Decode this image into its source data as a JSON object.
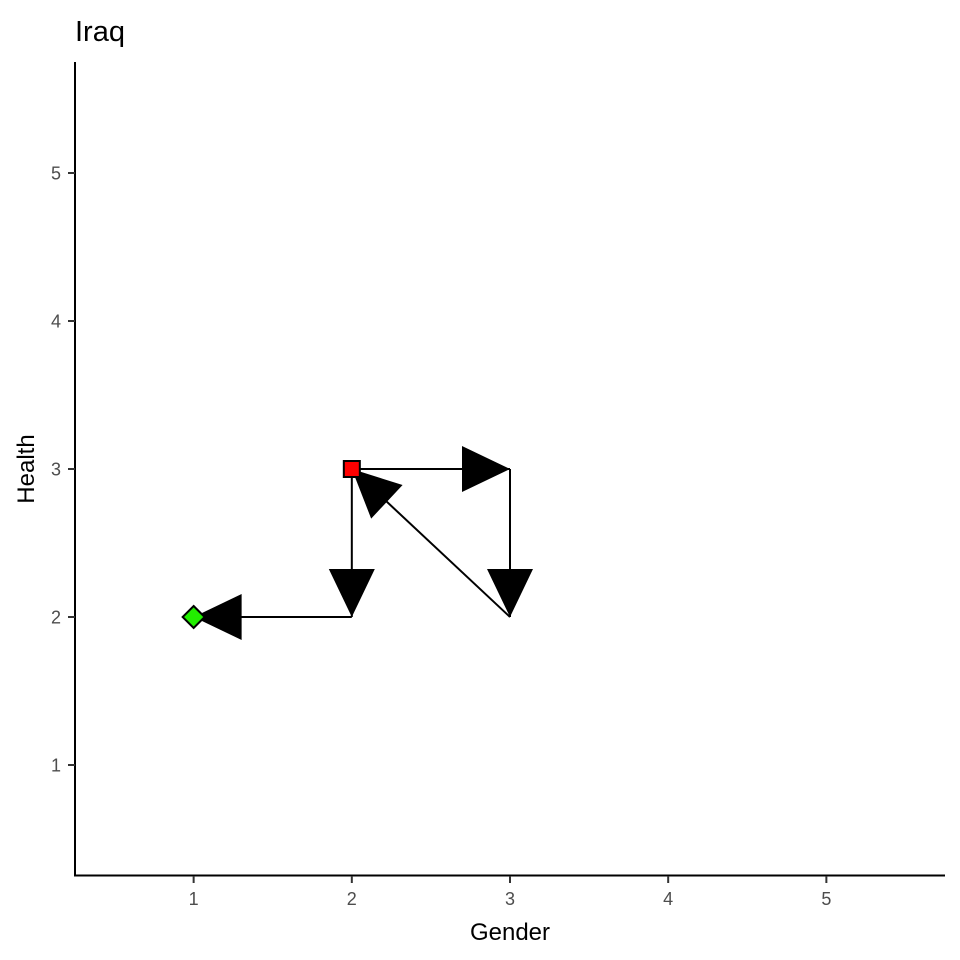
{
  "chart_data": {
    "type": "line",
    "title": "Iraq",
    "xlabel": "Gender",
    "ylabel": "Health",
    "xlim": [
      0.25,
      5.75
    ],
    "ylim": [
      0.25,
      5.75
    ],
    "x_ticks": [
      1,
      2,
      3,
      4,
      5
    ],
    "y_ticks": [
      1,
      2,
      3,
      4,
      5
    ],
    "grid": false,
    "path": [
      {
        "x": 2,
        "y": 3
      },
      {
        "x": 3,
        "y": 3
      },
      {
        "x": 3,
        "y": 2
      },
      {
        "x": 2,
        "y": 3
      },
      {
        "x": 2,
        "y": 2
      },
      {
        "x": 1,
        "y": 2
      }
    ],
    "start_marker": {
      "x": 2,
      "y": 3,
      "shape": "square",
      "color": "#ff0000"
    },
    "end_marker": {
      "x": 1,
      "y": 2,
      "shape": "diamond",
      "color": "#22ee00"
    }
  },
  "colors": {
    "axis": "#000000",
    "path": "#000000",
    "tick_text": "#4d4d4d"
  }
}
